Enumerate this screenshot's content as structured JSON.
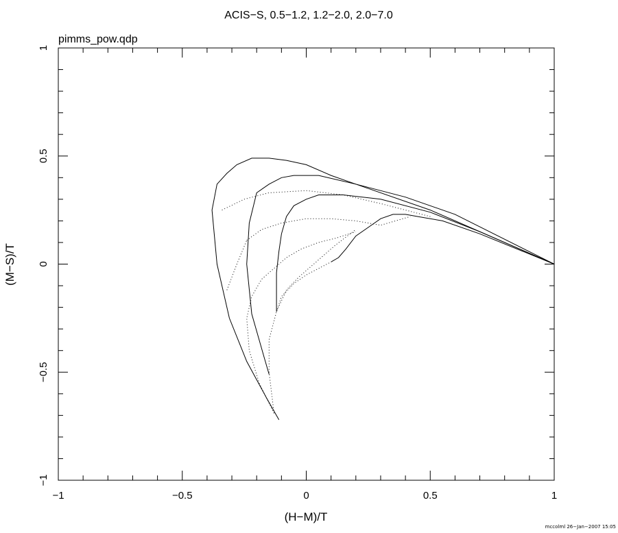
{
  "chart_data": {
    "type": "line",
    "title": "ACIS−S, 0.5−1.2, 1.2−2.0, 2.0−7.0",
    "subtitle": "pimms_pow.qdp",
    "xlabel": "(H−M)/T",
    "ylabel": "(M−S)/T",
    "xlim": [
      -1,
      1
    ],
    "ylim": [
      -1,
      1
    ],
    "xticks": [
      {
        "value": -1,
        "label": "−1"
      },
      {
        "value": -0.5,
        "label": "−0.5"
      },
      {
        "value": 0,
        "label": "0"
      },
      {
        "value": 0.5,
        "label": "0.5"
      },
      {
        "value": 1,
        "label": "1"
      }
    ],
    "yticks": [
      {
        "value": -1,
        "label": "−1"
      },
      {
        "value": -0.5,
        "label": "−0.5"
      },
      {
        "value": 0,
        "label": "0"
      },
      {
        "value": 0.5,
        "label": "0.5"
      },
      {
        "value": 1,
        "label": "1"
      }
    ],
    "grid": false,
    "series": [
      {
        "style": "solid",
        "points": [
          [
            1.0,
            0.0
          ],
          [
            0.5,
            0.25
          ],
          [
            0.2,
            0.37
          ],
          [
            0.05,
            0.41
          ],
          [
            -0.05,
            0.41
          ],
          [
            -0.1,
            0.4
          ],
          [
            -0.15,
            0.37
          ],
          [
            -0.2,
            0.33
          ],
          [
            -0.23,
            0.19
          ],
          [
            -0.24,
            0.0
          ],
          [
            -0.22,
            -0.23
          ],
          [
            -0.17,
            -0.43
          ],
          [
            -0.15,
            -0.51
          ]
        ]
      },
      {
        "style": "solid",
        "points": [
          [
            1.0,
            0.0
          ],
          [
            0.6,
            0.23
          ],
          [
            0.4,
            0.31
          ],
          [
            0.2,
            0.37
          ],
          [
            0.1,
            0.41
          ],
          [
            0.0,
            0.46
          ],
          [
            -0.08,
            0.48
          ],
          [
            -0.15,
            0.49
          ],
          [
            -0.22,
            0.49
          ],
          [
            -0.28,
            0.46
          ],
          [
            -0.32,
            0.42
          ],
          [
            -0.36,
            0.37
          ],
          [
            -0.38,
            0.25
          ],
          [
            -0.36,
            0.0
          ],
          [
            -0.31,
            -0.25
          ],
          [
            -0.24,
            -0.45
          ],
          [
            -0.16,
            -0.62
          ],
          [
            -0.11,
            -0.72
          ]
        ]
      },
      {
        "style": "solid",
        "points": [
          [
            1.0,
            0.0
          ],
          [
            0.7,
            0.15
          ],
          [
            0.5,
            0.24
          ],
          [
            0.3,
            0.3
          ],
          [
            0.15,
            0.32
          ],
          [
            0.05,
            0.32
          ],
          [
            0.0,
            0.3
          ],
          [
            -0.05,
            0.27
          ],
          [
            -0.08,
            0.22
          ],
          [
            -0.1,
            0.14
          ],
          [
            -0.11,
            0.06
          ],
          [
            -0.12,
            -0.04
          ],
          [
            -0.12,
            -0.12
          ],
          [
            -0.12,
            -0.22
          ]
        ]
      },
      {
        "style": "solid",
        "points": [
          [
            1.0,
            0.0
          ],
          [
            0.7,
            0.14
          ],
          [
            0.55,
            0.2
          ],
          [
            0.45,
            0.22
          ],
          [
            0.4,
            0.23
          ],
          [
            0.35,
            0.23
          ],
          [
            0.3,
            0.21
          ],
          [
            0.25,
            0.17
          ],
          [
            0.2,
            0.13
          ],
          [
            0.16,
            0.07
          ],
          [
            0.13,
            0.03
          ],
          [
            0.1,
            0.01
          ]
        ]
      },
      {
        "style": "dotted",
        "points": [
          [
            -0.34,
            0.25
          ],
          [
            -0.25,
            0.3
          ],
          [
            -0.15,
            0.33
          ],
          [
            0.0,
            0.34
          ],
          [
            0.15,
            0.32
          ],
          [
            0.3,
            0.28
          ],
          [
            0.5,
            0.22
          ]
        ]
      },
      {
        "style": "dotted",
        "points": [
          [
            -0.24,
            0.11
          ],
          [
            -0.18,
            0.16
          ],
          [
            -0.1,
            0.19
          ],
          [
            0.0,
            0.21
          ],
          [
            0.1,
            0.21
          ],
          [
            0.2,
            0.2
          ],
          [
            0.3,
            0.18
          ],
          [
            0.42,
            0.22
          ]
        ]
      },
      {
        "style": "dotted",
        "points": [
          [
            -0.32,
            -0.12
          ],
          [
            -0.28,
            0.0
          ],
          [
            -0.24,
            0.11
          ]
        ]
      },
      {
        "style": "dotted",
        "points": [
          [
            -0.13,
            -0.69
          ],
          [
            -0.15,
            -0.5
          ],
          [
            -0.15,
            -0.35
          ],
          [
            -0.12,
            -0.22
          ],
          [
            -0.08,
            -0.12
          ],
          [
            -0.03,
            -0.06
          ],
          [
            0.02,
            -0.01
          ],
          [
            0.08,
            0.05
          ],
          [
            0.12,
            0.09
          ],
          [
            0.2,
            0.16
          ]
        ]
      },
      {
        "style": "dotted",
        "points": [
          [
            -0.13,
            -0.69
          ],
          [
            -0.19,
            -0.55
          ],
          [
            -0.23,
            -0.4
          ],
          [
            -0.24,
            -0.25
          ],
          [
            -0.22,
            -0.15
          ],
          [
            -0.18,
            -0.07
          ],
          [
            -0.13,
            -0.02
          ],
          [
            -0.08,
            0.03
          ],
          [
            -0.02,
            0.07
          ],
          [
            0.05,
            0.1
          ],
          [
            0.12,
            0.12
          ],
          [
            0.2,
            0.15
          ]
        ]
      },
      {
        "style": "dotted",
        "points": [
          [
            -0.12,
            -0.22
          ],
          [
            -0.1,
            -0.15
          ],
          [
            -0.05,
            -0.09
          ],
          [
            0.0,
            -0.05
          ],
          [
            0.05,
            -0.02
          ],
          [
            0.1,
            0.01
          ]
        ]
      }
    ]
  },
  "footer": "mccolml 26−Jan−2007 15:05"
}
